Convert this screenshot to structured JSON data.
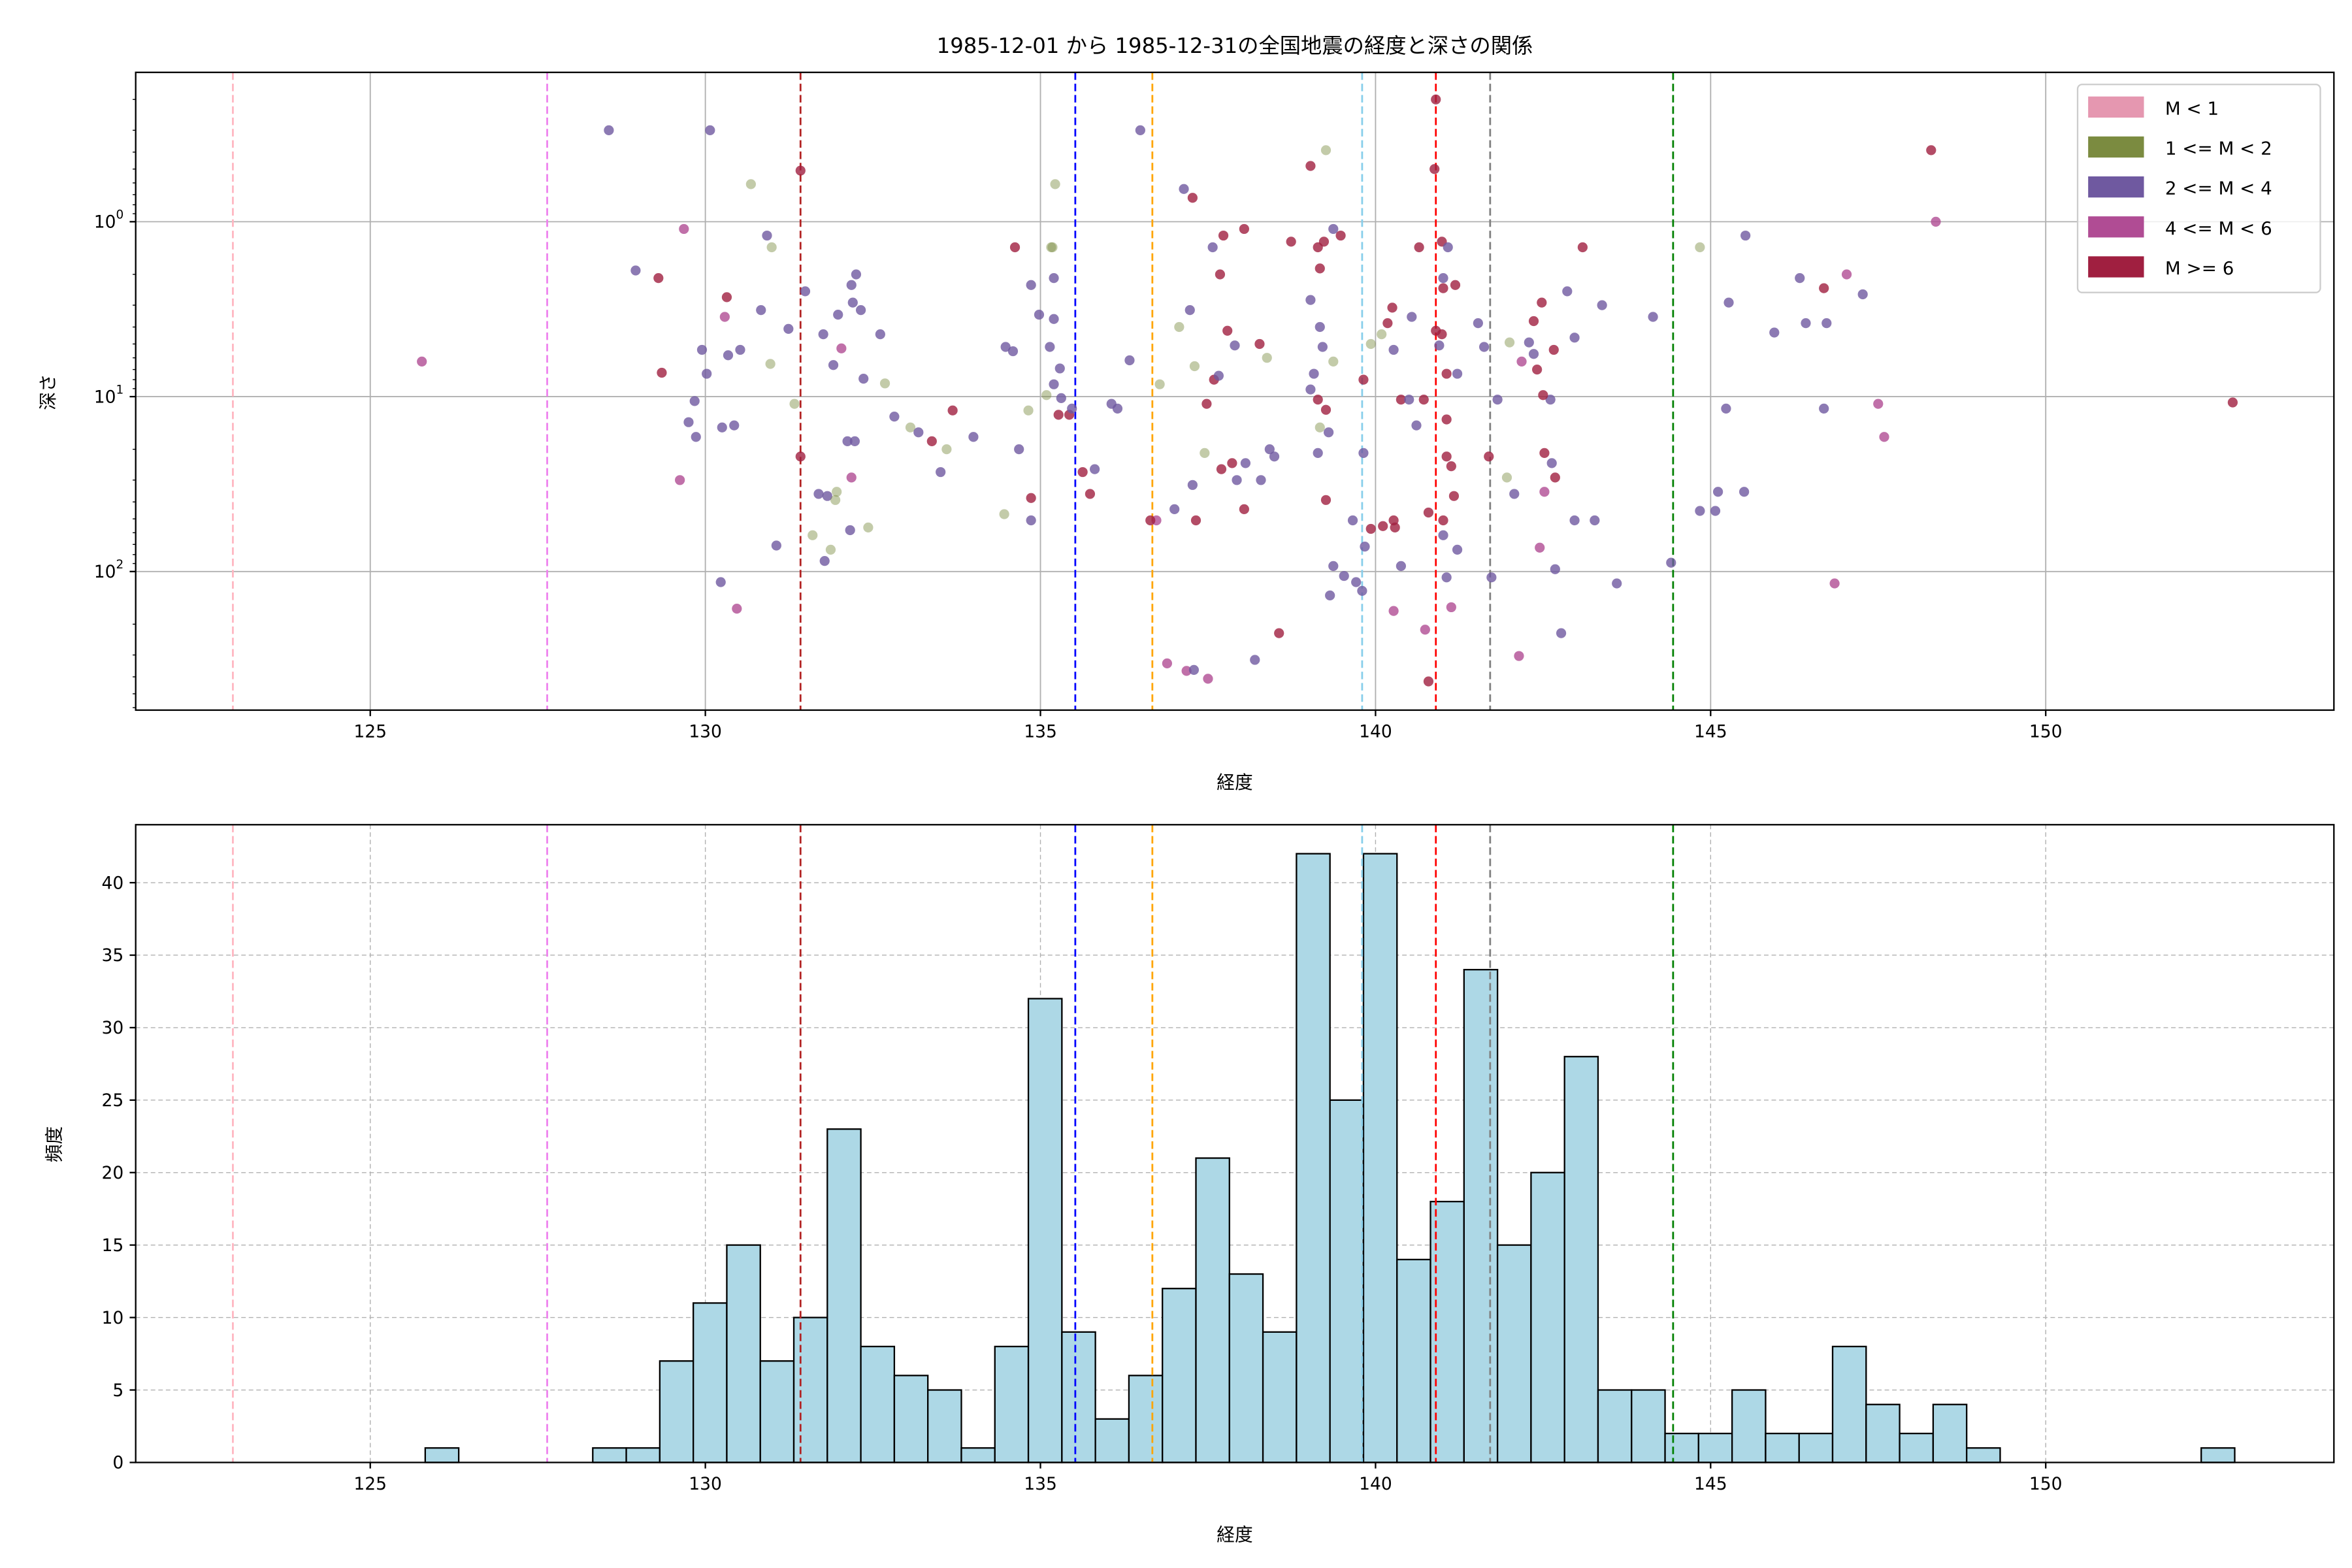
{
  "title": "1985-12-01 から 1985-12-31の全国地震の経度と深さの関係",
  "chart_data": [
    {
      "type": "scatter",
      "title": "1985-12-01 から 1985-12-31の全国地震の経度と深さの関係",
      "xlabel": "経度",
      "ylabel": "深さ",
      "xlim": [
        121.5,
        154.3
      ],
      "ylim": [
        620,
        0.14
      ],
      "yscale": "log",
      "y_inverted": true,
      "grid": true,
      "xticks": [
        "125",
        "130",
        "135",
        "140",
        "145",
        "150"
      ],
      "yticks": [
        {
          "base": "10",
          "exp": "0",
          "value": 1
        },
        {
          "base": "10",
          "exp": "1",
          "value": 10
        },
        {
          "base": "10",
          "exp": "2",
          "value": 100
        }
      ],
      "legend_position": "top-right",
      "legend": [
        {
          "label": "M < 1",
          "color": "#e597b0"
        },
        {
          "label": "1 <= M < 2",
          "color": "#7b8b40"
        },
        {
          "label": "2 <= M < 4",
          "color": "#6f59a0"
        },
        {
          "label": "4 <= M < 6",
          "color": "#b04c94"
        },
        {
          "label": "M >= 6",
          "color": "#a01f40"
        }
      ],
      "points_format": [
        "longitude",
        "depth",
        "magnitude_class_index"
      ],
      "points": [
        [
          125.77,
          6.3,
          3
        ],
        [
          128.56,
          0.3,
          2
        ],
        [
          130.07,
          0.3,
          2
        ],
        [
          130.68,
          0.61,
          1
        ],
        [
          131.42,
          0.51,
          4
        ],
        [
          129.68,
          1.1,
          3
        ],
        [
          128.96,
          1.9,
          2
        ],
        [
          129.3,
          2.1,
          4
        ],
        [
          130.92,
          1.2,
          2
        ],
        [
          130.99,
          1.4,
          1
        ],
        [
          130.32,
          2.7,
          4
        ],
        [
          130.29,
          3.5,
          3
        ],
        [
          130.83,
          3.2,
          2
        ],
        [
          129.95,
          5.4,
          2
        ],
        [
          129.35,
          7.3,
          4
        ],
        [
          130.02,
          7.4,
          2
        ],
        [
          130.34,
          5.8,
          2
        ],
        [
          130.52,
          5.4,
          2
        ],
        [
          129.84,
          10.6,
          2
        ],
        [
          129.75,
          14,
          2
        ],
        [
          130.25,
          15,
          2
        ],
        [
          130.43,
          14.6,
          2
        ],
        [
          129.86,
          17,
          2
        ],
        [
          129.62,
          30,
          3
        ],
        [
          130.23,
          115,
          2
        ],
        [
          130.47,
          163,
          3
        ],
        [
          131.06,
          71,
          2
        ],
        [
          131.33,
          11,
          1
        ],
        [
          131.24,
          4.1,
          2
        ],
        [
          130.97,
          6.5,
          1
        ],
        [
          131.49,
          2.5,
          2
        ],
        [
          131.76,
          4.4,
          2
        ],
        [
          131.98,
          3.4,
          2
        ],
        [
          132.03,
          5.3,
          3
        ],
        [
          132.18,
          2.3,
          2
        ],
        [
          132.25,
          2.0,
          2
        ],
        [
          132.32,
          3.2,
          2
        ],
        [
          132.2,
          2.9,
          2
        ],
        [
          132.61,
          4.4,
          2
        ],
        [
          131.91,
          6.6,
          2
        ],
        [
          132.36,
          7.9,
          2
        ],
        [
          132.68,
          8.4,
          1
        ],
        [
          131.42,
          22,
          4
        ],
        [
          131.69,
          36,
          2
        ],
        [
          131.82,
          37,
          2
        ],
        [
          131.96,
          35,
          1
        ],
        [
          131.94,
          39,
          1
        ],
        [
          131.6,
          62,
          1
        ],
        [
          131.87,
          75,
          1
        ],
        [
          131.78,
          87,
          2
        ],
        [
          132.18,
          29,
          3
        ],
        [
          132.12,
          18,
          2
        ],
        [
          132.23,
          18,
          2
        ],
        [
          132.43,
          56,
          1
        ],
        [
          132.16,
          58,
          2
        ],
        [
          132.82,
          13,
          2
        ],
        [
          133.06,
          15,
          1
        ],
        [
          133.18,
          16,
          2
        ],
        [
          133.38,
          18,
          4
        ],
        [
          133.6,
          20,
          1
        ],
        [
          133.69,
          12,
          4
        ],
        [
          133.51,
          27,
          2
        ],
        [
          134.0,
          17,
          2
        ],
        [
          134.46,
          47,
          1
        ],
        [
          134.59,
          5.5,
          2
        ],
        [
          134.86,
          51,
          2
        ],
        [
          134.86,
          38,
          4
        ],
        [
          134.48,
          5.2,
          2
        ],
        [
          134.68,
          20,
          2
        ],
        [
          134.82,
          12,
          1
        ],
        [
          134.62,
          1.4,
          4
        ],
        [
          135.16,
          1.4,
          1
        ],
        [
          135.18,
          1.4,
          1
        ],
        [
          135.22,
          0.61,
          1
        ],
        [
          134.86,
          2.3,
          2
        ],
        [
          135.2,
          2.1,
          2
        ],
        [
          134.98,
          3.4,
          2
        ],
        [
          135.2,
          3.6,
          2
        ],
        [
          135.14,
          5.2,
          2
        ],
        [
          135.29,
          6.9,
          2
        ],
        [
          135.2,
          8.5,
          2
        ],
        [
          135.09,
          9.8,
          1
        ],
        [
          135.31,
          10.2,
          2
        ],
        [
          135.27,
          12.7,
          4
        ],
        [
          135.43,
          12.7,
          4
        ],
        [
          135.47,
          11.7,
          2
        ],
        [
          135.63,
          27,
          4
        ],
        [
          135.74,
          36,
          4
        ],
        [
          135.81,
          26,
          2
        ],
        [
          136.15,
          11.7,
          2
        ],
        [
          136.06,
          11,
          2
        ],
        [
          136.33,
          6.2,
          2
        ],
        [
          136.49,
          0.3,
          2
        ],
        [
          136.73,
          51,
          3
        ],
        [
          136.64,
          51,
          4
        ],
        [
          137.0,
          44,
          2
        ],
        [
          136.78,
          8.5,
          1
        ],
        [
          137.07,
          4.0,
          1
        ],
        [
          137.23,
          3.2,
          2
        ],
        [
          137.27,
          0.73,
          4
        ],
        [
          137.14,
          0.65,
          2
        ],
        [
          137.3,
          6.7,
          1
        ],
        [
          136.89,
          335,
          3
        ],
        [
          137.18,
          370,
          3
        ],
        [
          137.29,
          365,
          2
        ],
        [
          137.5,
          410,
          3
        ],
        [
          137.32,
          51,
          4
        ],
        [
          137.27,
          32,
          2
        ],
        [
          137.45,
          21,
          1
        ],
        [
          137.59,
          8.0,
          4
        ],
        [
          137.48,
          11,
          4
        ],
        [
          137.66,
          7.6,
          2
        ],
        [
          137.73,
          1.2,
          4
        ],
        [
          137.79,
          4.2,
          4
        ],
        [
          137.9,
          5.1,
          2
        ],
        [
          137.68,
          2.0,
          4
        ],
        [
          137.57,
          1.4,
          2
        ],
        [
          138.04,
          1.1,
          4
        ],
        [
          138.06,
          24,
          2
        ],
        [
          137.86,
          24,
          4
        ],
        [
          137.7,
          26,
          4
        ],
        [
          137.93,
          30,
          2
        ],
        [
          138.04,
          44,
          4
        ],
        [
          138.29,
          30,
          2
        ],
        [
          138.27,
          5.0,
          4
        ],
        [
          138.38,
          6.0,
          1
        ],
        [
          138.42,
          20,
          2
        ],
        [
          138.49,
          22,
          2
        ],
        [
          138.2,
          320,
          2
        ],
        [
          138.56,
          225,
          4
        ],
        [
          138.74,
          1.3,
          4
        ],
        [
          139.03,
          0.48,
          4
        ],
        [
          139.26,
          0.39,
          1
        ],
        [
          139.23,
          1.3,
          4
        ],
        [
          139.37,
          1.1,
          2
        ],
        [
          139.48,
          1.2,
          4
        ],
        [
          139.14,
          1.4,
          4
        ],
        [
          139.17,
          1.85,
          4
        ],
        [
          139.03,
          2.8,
          2
        ],
        [
          139.17,
          4.0,
          2
        ],
        [
          139.21,
          5.2,
          2
        ],
        [
          139.08,
          7.4,
          2
        ],
        [
          139.14,
          10.4,
          4
        ],
        [
          139.26,
          11.9,
          4
        ],
        [
          139.17,
          15,
          1
        ],
        [
          139.3,
          16,
          2
        ],
        [
          139.14,
          21,
          2
        ],
        [
          139.26,
          39,
          4
        ],
        [
          139.03,
          9.1,
          2
        ],
        [
          139.37,
          6.3,
          1
        ],
        [
          139.37,
          93,
          2
        ],
        [
          139.53,
          106,
          2
        ],
        [
          139.32,
          137,
          2
        ],
        [
          139.71,
          115,
          2
        ],
        [
          139.8,
          129,
          2
        ],
        [
          139.84,
          72,
          2
        ],
        [
          139.66,
          51,
          2
        ],
        [
          139.82,
          21,
          2
        ],
        [
          139.82,
          8,
          4
        ],
        [
          139.93,
          5.0,
          1
        ],
        [
          140.09,
          4.4,
          1
        ],
        [
          140.18,
          3.8,
          4
        ],
        [
          140.25,
          3.1,
          4
        ],
        [
          140.27,
          5.4,
          2
        ],
        [
          140.38,
          10.4,
          4
        ],
        [
          140.5,
          10.4,
          2
        ],
        [
          140.72,
          10.4,
          4
        ],
        [
          140.61,
          14.6,
          2
        ],
        [
          140.54,
          3.5,
          2
        ],
        [
          140.65,
          1.4,
          4
        ],
        [
          140.99,
          1.3,
          4
        ],
        [
          141.08,
          1.4,
          2
        ],
        [
          140.9,
          0.2,
          4
        ],
        [
          140.88,
          0.5,
          4
        ],
        [
          141.01,
          2.1,
          2
        ],
        [
          141.01,
          2.4,
          4
        ],
        [
          141.19,
          2.3,
          4
        ],
        [
          140.99,
          4.4,
          4
        ],
        [
          140.95,
          5.1,
          2
        ],
        [
          140.9,
          4.2,
          4
        ],
        [
          141.06,
          7.4,
          4
        ],
        [
          141.22,
          7.4,
          2
        ],
        [
          141.06,
          13.5,
          4
        ],
        [
          141.06,
          22,
          4
        ],
        [
          141.13,
          25,
          4
        ],
        [
          141.17,
          37,
          4
        ],
        [
          141.01,
          51,
          4
        ],
        [
          140.79,
          46,
          4
        ],
        [
          141.01,
          62,
          2
        ],
        [
          141.22,
          75,
          2
        ],
        [
          141.06,
          108,
          2
        ],
        [
          140.79,
          425,
          4
        ],
        [
          140.74,
          215,
          3
        ],
        [
          141.13,
          160,
          3
        ],
        [
          140.38,
          93,
          2
        ],
        [
          140.27,
          168,
          3
        ],
        [
          139.93,
          57,
          4
        ],
        [
          140.11,
          55,
          4
        ],
        [
          140.29,
          56,
          4
        ],
        [
          140.27,
          51,
          4
        ],
        [
          141.53,
          3.8,
          2
        ],
        [
          141.62,
          5.2,
          2
        ],
        [
          141.82,
          10.4,
          2
        ],
        [
          141.69,
          22,
          4
        ],
        [
          141.73,
          108,
          2
        ],
        [
          141.96,
          29,
          1
        ],
        [
          142.07,
          36,
          2
        ],
        [
          142.0,
          4.9,
          1
        ],
        [
          142.18,
          6.3,
          3
        ],
        [
          142.36,
          5.7,
          2
        ],
        [
          142.29,
          4.9,
          2
        ],
        [
          142.36,
          3.7,
          4
        ],
        [
          142.48,
          2.9,
          4
        ],
        [
          142.41,
          7.0,
          4
        ],
        [
          142.66,
          5.4,
          4
        ],
        [
          142.61,
          10.4,
          2
        ],
        [
          142.5,
          9.8,
          4
        ],
        [
          142.52,
          21,
          4
        ],
        [
          142.63,
          24,
          2
        ],
        [
          142.68,
          29,
          4
        ],
        [
          142.52,
          35,
          3
        ],
        [
          142.45,
          73,
          3
        ],
        [
          142.68,
          97,
          2
        ],
        [
          142.14,
          304,
          3
        ],
        [
          142.77,
          225,
          2
        ],
        [
          142.86,
          2.5,
          2
        ],
        [
          142.97,
          4.6,
          2
        ],
        [
          143.09,
          1.4,
          4
        ],
        [
          143.27,
          51,
          2
        ],
        [
          142.97,
          51,
          2
        ],
        [
          143.38,
          3.0,
          2
        ],
        [
          143.6,
          117,
          2
        ],
        [
          144.14,
          3.5,
          2
        ],
        [
          144.41,
          89,
          2
        ],
        [
          144.84,
          45,
          2
        ],
        [
          145.07,
          45,
          2
        ],
        [
          145.11,
          35,
          2
        ],
        [
          145.23,
          11.7,
          2
        ],
        [
          145.27,
          2.9,
          2
        ],
        [
          145.5,
          35,
          2
        ],
        [
          144.84,
          1.4,
          1
        ],
        [
          145.52,
          1.2,
          2
        ],
        [
          145.95,
          4.3,
          2
        ],
        [
          146.33,
          2.1,
          2
        ],
        [
          146.42,
          3.8,
          2
        ],
        [
          146.73,
          3.8,
          2
        ],
        [
          146.69,
          11.7,
          2
        ],
        [
          146.69,
          2.4,
          4
        ],
        [
          147.03,
          2.0,
          3
        ],
        [
          147.27,
          2.6,
          2
        ],
        [
          147.5,
          11,
          3
        ],
        [
          147.59,
          17,
          3
        ],
        [
          146.85,
          117,
          3
        ],
        [
          148.29,
          0.39,
          4
        ],
        [
          148.36,
          1.0,
          3
        ],
        [
          152.79,
          10.8,
          4
        ]
      ]
    },
    {
      "type": "bar",
      "subtype": "histogram",
      "xlabel": "経度",
      "ylabel": "頻度",
      "xlim": [
        121.5,
        154.3
      ],
      "ylim": [
        0,
        44
      ],
      "grid": true,
      "xticks": [
        "125",
        "130",
        "135",
        "140",
        "145",
        "150"
      ],
      "yticks": [
        "0",
        "5",
        "10",
        "15",
        "20",
        "25",
        "30",
        "35",
        "40"
      ],
      "bin_start": 125.82,
      "bin_width": 0.5,
      "counts": [
        1,
        0,
        0,
        0,
        0,
        1,
        1,
        7,
        11,
        15,
        7,
        10,
        23,
        8,
        6,
        5,
        1,
        8,
        32,
        9,
        3,
        6,
        12,
        21,
        13,
        9,
        42,
        25,
        42,
        14,
        18,
        34,
        15,
        20,
        28,
        5,
        5,
        2,
        2,
        5,
        2,
        2,
        8,
        4,
        2,
        4,
        1,
        0,
        0,
        0,
        0,
        0,
        0,
        1
      ],
      "bar_color": "#add8e6",
      "edge_color": "#000000"
    }
  ],
  "reference_lines": [
    {
      "x": 122.95,
      "color": "#ffb6c1"
    },
    {
      "x": 127.64,
      "color": "#ee82ee"
    },
    {
      "x": 131.42,
      "color": "#b22222"
    },
    {
      "x": 135.52,
      "color": "#0000ff"
    },
    {
      "x": 136.67,
      "color": "#ffa500"
    },
    {
      "x": 139.8,
      "color": "#87ceeb"
    },
    {
      "x": 140.9,
      "color": "#ff0000"
    },
    {
      "x": 141.71,
      "color": "#808080"
    },
    {
      "x": 144.44,
      "color": "#008000"
    }
  ]
}
